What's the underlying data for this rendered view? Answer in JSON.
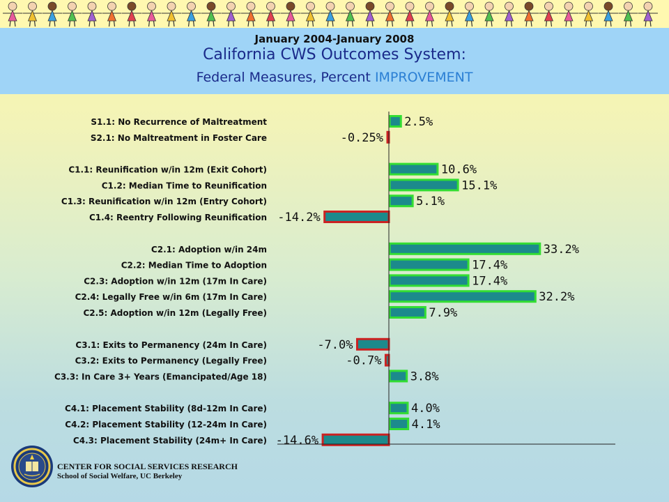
{
  "header": {
    "date_range": "January 2004-January 2008",
    "title": "California CWS Outcomes System:",
    "subtitle_prefix": "Federal Measures, Percent ",
    "subtitle_highlight": "IMPROVEMENT"
  },
  "footer": {
    "line1": "CENTER FOR SOCIAL SERVICES RESEARCH",
    "line2": "School of Social Welfare, UC Berkeley",
    "seal_icon": "university-seal-icon"
  },
  "decoration": {
    "banner_icon": "children-holding-hands-icon"
  },
  "colors": {
    "bar_fill": "#1c8a8c",
    "positive_border": "#33dd33",
    "negative_border": "#cc2222"
  },
  "chart_data": {
    "type": "bar",
    "orientation": "horizontal",
    "categories": [
      "S1.1: No Recurrence of Maltreatment",
      "S2.1: No Maltreatment in Foster Care",
      "C1.1: Reunification w/in 12m (Exit Cohort)",
      "C1.2: Median Time to Reunification",
      "C1.3: Reunification w/in 12m (Entry Cohort)",
      "C1.4: Reentry Following Reunification",
      "C2.1: Adoption w/in 24m",
      "C2.2: Median Time to Adoption",
      "C2.3: Adoption w/in 12m (17m In Care)",
      "C2.4: Legally Free w/in 6m (17m In Care)",
      "C2.5: Adoption w/in 12m (Legally Free)",
      "C3.1:  Exits to Permanency (24m In Care)",
      "C3.2:  Exits to Permanency (Legally Free)",
      "C3.3: In Care 3+ Years (Emancipated/Age 18)",
      "C4.1: Placement Stability (8d-12m In Care)",
      "C4.2: Placement Stability (12-24m In Care)",
      "C4.3: Placement Stability (24m+ In Care)"
    ],
    "groups": [
      0,
      0,
      1,
      1,
      1,
      1,
      2,
      2,
      2,
      2,
      2,
      3,
      3,
      3,
      4,
      4,
      4
    ],
    "values": [
      2.5,
      -0.25,
      10.6,
      15.1,
      5.1,
      -14.2,
      33.2,
      17.4,
      17.4,
      32.2,
      7.9,
      -7.0,
      -0.7,
      3.8,
      4.0,
      4.1,
      -14.6
    ],
    "value_labels": [
      "2.5%",
      "-0.25%",
      "10.6%",
      "15.1%",
      "5.1%",
      "-14.2%",
      "33.2%",
      "17.4%",
      "17.4%",
      "32.2%",
      "7.9%",
      "-7.0%",
      "-0.7%",
      "3.8%",
      "4.0%",
      "4.1%",
      "-14.6%"
    ],
    "xlim": [
      -15,
      50
    ],
    "grid": false,
    "legend": "none",
    "title": "",
    "xlabel": "",
    "ylabel": ""
  }
}
